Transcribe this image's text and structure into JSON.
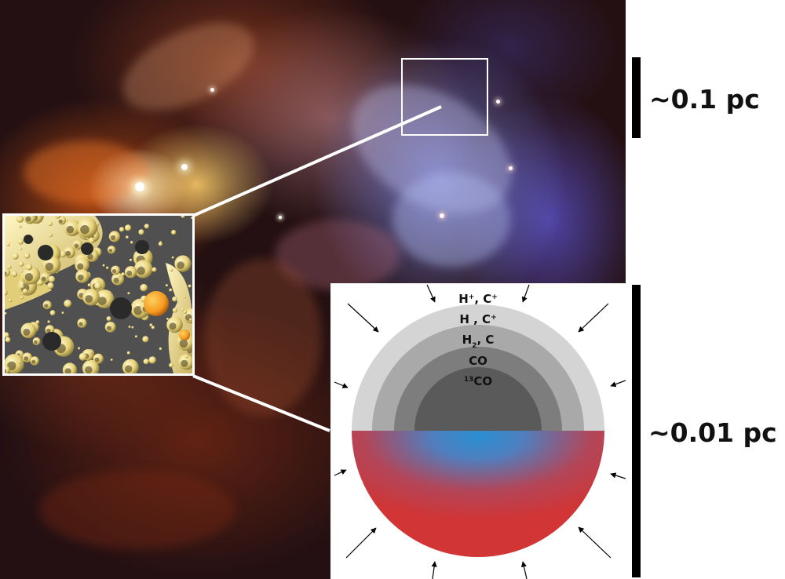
{
  "scale_bars": {
    "large": {
      "label": "~0.1 pc"
    },
    "small": {
      "label": "~0.01 pc"
    }
  },
  "cloud_layers": [
    {
      "species": "H",
      "sup": "+",
      "mid": ", C",
      "sup2": "+",
      "color": "#ffffff"
    },
    {
      "species": "H , C",
      "sup": "",
      "mid": "",
      "sup2": "+",
      "color": "#d4d4d4"
    },
    {
      "species": "H",
      "sub": "2",
      "mid": ", C",
      "color": "#a9a9a9"
    },
    {
      "species": "CO",
      "color": "#7d7d7d"
    },
    {
      "species": "CO",
      "pre_sup": "13",
      "color": "#5a5a5a"
    }
  ],
  "colors": {
    "scale_bar": "#000000",
    "density_outer": "#d13535",
    "density_core": "#2a8ed0",
    "grain_surface": "#e8d37a",
    "grain_background": "#505050",
    "ice_grain": "#f39a1e",
    "zoom_lines": "#ffffff"
  }
}
